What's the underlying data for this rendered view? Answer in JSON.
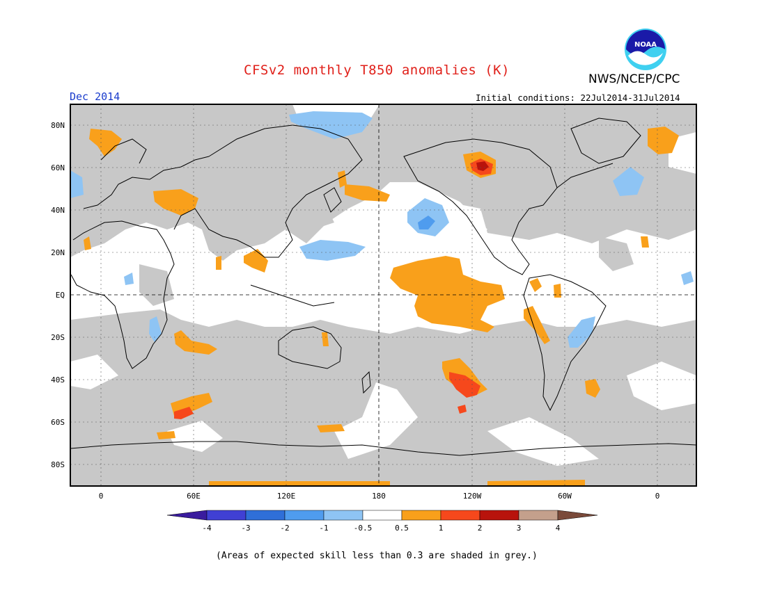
{
  "header": {
    "title": "CFSv2 monthly T850 anomalies (K)",
    "agency": "NWS/NCEP/CPC",
    "period": "Dec 2014",
    "initial_conditions": "Initial conditions: 22Jul2014-31Jul2014",
    "logo_text": "NOAA"
  },
  "axes": {
    "lat_labels": [
      "80N",
      "60N",
      "40N",
      "20N",
      "EQ",
      "20S",
      "40S",
      "60S",
      "80S"
    ],
    "lon_labels": [
      "0",
      "60E",
      "120E",
      "180",
      "120W",
      "60W",
      "0"
    ]
  },
  "colorbar": {
    "ticks": [
      "-4",
      "-3",
      "-2",
      "-1",
      "-0.5",
      "0.5",
      "1",
      "2",
      "3",
      "4"
    ],
    "colors": [
      "#3a1c9e",
      "#4040d4",
      "#2f6fd8",
      "#4f9cee",
      "#8ec4f4",
      "#ffffff",
      "#f9a01b",
      "#f6481c",
      "#b8130c",
      "#c4a08c",
      "#7a4a3a"
    ]
  },
  "colors": {
    "title": "#e0201a",
    "period": "#1a3ccc",
    "grey_low_skill": "#c8c8c8",
    "orange": "#f9a01b",
    "red": "#f6481c",
    "light_blue": "#8ec4f4",
    "blue": "#4f9cee"
  },
  "footer": {
    "note": "(Areas of expected skill less than 0.3 are shaded in grey.)"
  }
}
